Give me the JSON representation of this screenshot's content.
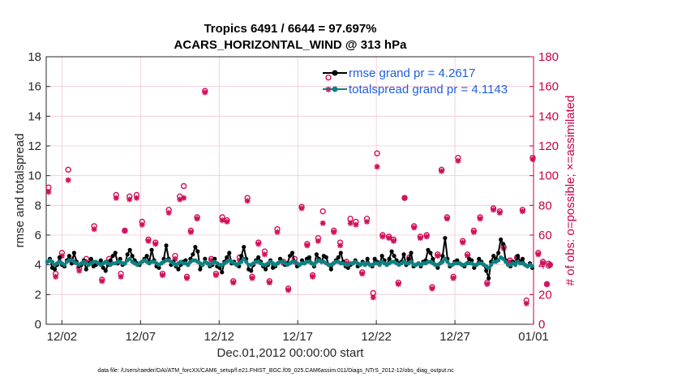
{
  "chart_data": {
    "type": "line",
    "title": "Tropics 6491 / 6644 = 97.697%",
    "subtitle": "ACARS_HORIZONTAL_WIND @ 313 hPa",
    "xlabel": "Dec.01,2012 00:00:00 start",
    "ylabel": "rmse and totalspread",
    "ylabel_right": "# of obs: o=possible; ×=assimilated",
    "footer": "data file: /Users/raeder/DAI/ATM_forcXX/CAM6_setup/f.e21.FHIST_BGC.f09_025.CAM6assim.011/Diags_NTrS_2012-12/obs_diag_output.nc",
    "xlim": [
      0,
      31
    ],
    "ylim": [
      0,
      18
    ],
    "ylim_right": [
      0,
      180
    ],
    "xticks": [
      1,
      6,
      11,
      16,
      21,
      26,
      31
    ],
    "xtick_labels": [
      "12/02",
      "12/07",
      "12/12",
      "12/17",
      "12/22",
      "12/27",
      "01/01"
    ],
    "yticks": [
      "0",
      "2",
      "4",
      "6",
      "8",
      "10",
      "12",
      "14",
      "16",
      "18"
    ],
    "yticks_right": [
      "0",
      "20",
      "40",
      "60",
      "80",
      "100",
      "120",
      "140",
      "160",
      "180"
    ],
    "grid": true,
    "legend_position": "top-right",
    "colors": {
      "rmse": "#000000",
      "spread": "#0f8080",
      "obs": "#d0105a",
      "legend_text": "#1f5fe0"
    },
    "series": [
      {
        "name": "rmse grand pr = 4.2617",
        "axis": "left",
        "values": [
          4.2,
          4.4,
          3.8,
          3.7,
          4.0,
          4.5,
          4.0,
          3.9,
          4.3,
          4.6,
          4.1,
          4.8,
          4.2,
          3.9,
          4.0,
          4.3,
          3.7,
          4.1,
          4.4,
          3.9,
          4.0,
          4.1,
          4.3,
          3.8,
          3.6,
          4.0,
          4.3,
          4.6,
          4.8,
          4.1,
          4.4,
          4.0,
          4.1,
          4.7,
          5.0,
          4.6,
          4.3,
          4.1,
          4.0,
          4.2,
          4.4,
          4.6,
          4.2,
          5.0,
          4.3,
          3.9,
          3.8,
          4.1,
          4.4,
          5.3,
          4.4,
          4.0,
          4.2,
          3.9,
          3.7,
          4.0,
          4.2,
          4.3,
          4.0,
          4.4,
          4.7,
          5.2,
          4.9,
          3.7,
          4.0,
          4.4,
          4.1,
          3.9,
          4.0,
          4.4,
          3.9,
          3.8,
          3.5,
          4.2,
          4.5,
          4.8,
          4.1,
          4.2,
          4.0,
          3.9,
          4.6,
          5.2,
          4.4,
          3.7,
          3.6,
          4.0,
          4.3,
          4.5,
          4.2,
          3.9,
          3.7,
          4.0,
          4.3,
          3.8,
          3.9,
          4.1,
          4.4,
          4.2,
          4.0,
          4.1,
          4.6,
          4.8,
          4.2,
          3.9,
          4.0,
          4.3,
          4.1,
          4.4,
          4.5,
          4.1,
          3.9,
          4.7,
          4.4,
          4.2,
          4.6,
          4.5,
          4.0,
          3.7,
          4.1,
          4.3,
          4.5,
          4.8,
          4.2,
          3.9,
          3.8,
          4.0,
          4.1,
          4.3,
          3.9,
          4.0,
          4.2,
          4.0,
          4.4,
          4.0,
          3.9,
          4.4,
          4.2,
          4.0,
          4.6,
          4.3,
          4.0,
          4.4,
          4.9,
          4.6,
          4.3,
          4.1,
          4.2,
          4.7,
          4.0,
          4.4,
          4.8,
          3.9,
          4.0,
          4.1,
          3.9,
          4.2,
          4.3,
          5.0,
          4.8,
          4.4,
          4.0,
          3.8,
          4.1,
          4.6,
          5.8,
          4.4,
          3.9,
          4.0,
          4.2,
          4.3,
          4.1,
          4.0,
          3.9,
          4.1,
          4.4,
          4.3,
          3.8,
          4.0,
          4.4,
          4.2,
          4.0,
          3.6,
          3.1,
          4.2,
          4.6,
          4.4,
          4.8,
          5.7,
          5.4,
          4.3,
          4.0,
          3.9,
          4.2,
          4.0,
          4.6,
          4.2,
          4.4,
          4.0,
          3.9,
          4.1,
          3.8
        ]
      },
      {
        "name": "totalspread grand pr = 4.1143",
        "axis": "left",
        "values": [
          4.2,
          4.3,
          4.2,
          4.0,
          4.1,
          4.2,
          4.1,
          4.0,
          4.2,
          4.3,
          4.3,
          4.2,
          4.1,
          4.0,
          4.1,
          4.2,
          4.1,
          4.0,
          4.1,
          4.2,
          4.2,
          4.1,
          4.0,
          4.1,
          4.2,
          4.1,
          4.0,
          4.1,
          4.1,
          4.2,
          4.2,
          4.1,
          4.1,
          4.3,
          4.4,
          4.2,
          4.1,
          4.0,
          4.1,
          4.2,
          4.3,
          4.2,
          4.1,
          4.2,
          4.2,
          4.1,
          4.0,
          4.1,
          4.2,
          4.3,
          4.3,
          4.2,
          4.1,
          4.0,
          4.1,
          4.2,
          4.1,
          4.1,
          4.0,
          4.2,
          4.3,
          4.3,
          4.2,
          4.1,
          4.0,
          4.2,
          4.1,
          4.0,
          4.1,
          4.2,
          4.1,
          4.0,
          4.0,
          4.1,
          4.2,
          4.3,
          4.2,
          4.1,
          4.0,
          4.1,
          4.2,
          4.4,
          4.2,
          4.0,
          4.0,
          4.1,
          4.2,
          4.2,
          4.1,
          4.0,
          4.0,
          4.1,
          4.2,
          4.1,
          4.0,
          4.1,
          4.2,
          4.2,
          4.1,
          4.0,
          4.1,
          4.2,
          4.2,
          4.1,
          4.0,
          4.1,
          4.1,
          4.2,
          4.2,
          4.1,
          4.0,
          4.2,
          4.3,
          4.2,
          4.2,
          4.1,
          4.0,
          4.0,
          4.1,
          4.2,
          4.2,
          4.1,
          4.1,
          4.0,
          4.0,
          4.1,
          4.1,
          4.2,
          4.1,
          4.0,
          4.1,
          4.0,
          4.1,
          4.0,
          4.0,
          4.1,
          4.1,
          4.0,
          4.2,
          4.1,
          4.0,
          4.1,
          4.2,
          4.2,
          4.1,
          4.0,
          4.1,
          4.2,
          4.1,
          4.1,
          4.2,
          4.0,
          4.0,
          4.1,
          4.0,
          4.1,
          4.1,
          4.2,
          4.2,
          4.1,
          4.0,
          4.0,
          4.1,
          4.2,
          4.4,
          4.2,
          4.0,
          4.0,
          4.1,
          4.1,
          4.1,
          4.0,
          4.0,
          4.1,
          4.1,
          4.1,
          4.0,
          4.0,
          4.1,
          4.1,
          4.0,
          3.9,
          3.8,
          4.0,
          4.2,
          4.2,
          4.3,
          4.5,
          4.4,
          4.2,
          4.0,
          4.0,
          4.1,
          4.0,
          4.2,
          4.1,
          4.1,
          4.0,
          3.9,
          4.0,
          3.9
        ]
      },
      {
        "name": "obs possible",
        "axis": "right",
        "marker": "circle",
        "points": [
          [
            0.15,
            92
          ],
          [
            0.6,
            34
          ],
          [
            1.0,
            48
          ],
          [
            1.4,
            104
          ],
          [
            1.75,
            44
          ],
          [
            2.1,
            38
          ],
          [
            2.55,
            44
          ],
          [
            3.05,
            66
          ],
          [
            3.55,
            30
          ],
          [
            4.0,
            44
          ],
          [
            4.45,
            87
          ],
          [
            4.75,
            34
          ],
          [
            5.0,
            63
          ],
          [
            5.3,
            86
          ],
          [
            5.75,
            87
          ],
          [
            6.1,
            69
          ],
          [
            6.5,
            57
          ],
          [
            6.95,
            55
          ],
          [
            7.4,
            34
          ],
          [
            7.8,
            77
          ],
          [
            8.2,
            46
          ],
          [
            8.5,
            86
          ],
          [
            8.75,
            93
          ],
          [
            8.95,
            32
          ],
          [
            9.2,
            63
          ],
          [
            9.6,
            72
          ],
          [
            10.1,
            157
          ],
          [
            10.5,
            44
          ],
          [
            10.8,
            34
          ],
          [
            11.2,
            72
          ],
          [
            11.5,
            70
          ],
          [
            11.9,
            29
          ],
          [
            12.3,
            45
          ],
          [
            12.8,
            85
          ],
          [
            13.1,
            32
          ],
          [
            13.5,
            55
          ],
          [
            13.9,
            49
          ],
          [
            14.2,
            29
          ],
          [
            14.7,
            64
          ],
          [
            15.1,
            42
          ],
          [
            15.4,
            24
          ],
          [
            15.8,
            44
          ],
          [
            16.25,
            79
          ],
          [
            16.6,
            54
          ],
          [
            16.95,
            33
          ],
          [
            17.3,
            58
          ],
          [
            17.6,
            76
          ],
          [
            17.95,
            166
          ],
          [
            18.3,
            63
          ],
          [
            18.7,
            55
          ],
          [
            19.1,
            42
          ],
          [
            19.35,
            71
          ],
          [
            19.7,
            69
          ],
          [
            20.1,
            35
          ],
          [
            20.4,
            71
          ],
          [
            20.8,
            21
          ],
          [
            21.05,
            115
          ],
          [
            21.4,
            60
          ],
          [
            21.8,
            59
          ],
          [
            22.1,
            57
          ],
          [
            22.4,
            28
          ],
          [
            22.8,
            85
          ],
          [
            23.1,
            45
          ],
          [
            23.4,
            66
          ],
          [
            23.8,
            59
          ],
          [
            24.2,
            60
          ],
          [
            24.55,
            25
          ],
          [
            24.9,
            47
          ],
          [
            25.15,
            104
          ],
          [
            25.5,
            72
          ],
          [
            25.9,
            32
          ],
          [
            26.2,
            112
          ],
          [
            26.5,
            56
          ],
          [
            26.8,
            47
          ],
          [
            27.2,
            63
          ],
          [
            27.6,
            72
          ],
          [
            28.05,
            28
          ],
          [
            28.45,
            78
          ],
          [
            28.85,
            76
          ],
          [
            29.1,
            52
          ],
          [
            29.5,
            43
          ],
          [
            29.95,
            45
          ],
          [
            30.3,
            77
          ],
          [
            30.55,
            16
          ],
          [
            30.95,
            112
          ],
          [
            31.3,
            48
          ],
          [
            31.6,
            42
          ],
          [
            31.85,
            27
          ],
          [
            32.05,
            40
          ]
        ]
      },
      {
        "name": "obs assimilated",
        "axis": "right",
        "marker": "asterisk",
        "points": [
          [
            0.15,
            89
          ],
          [
            0.6,
            32
          ],
          [
            1.0,
            46
          ],
          [
            1.4,
            97
          ],
          [
            1.75,
            42
          ],
          [
            2.1,
            36
          ],
          [
            2.55,
            42
          ],
          [
            3.05,
            64
          ],
          [
            3.55,
            29
          ],
          [
            4.0,
            42
          ],
          [
            4.45,
            85
          ],
          [
            4.75,
            32
          ],
          [
            5.0,
            63
          ],
          [
            5.3,
            84
          ],
          [
            5.75,
            85
          ],
          [
            6.1,
            67
          ],
          [
            6.5,
            56
          ],
          [
            6.95,
            54
          ],
          [
            7.4,
            33
          ],
          [
            7.8,
            75
          ],
          [
            8.2,
            44
          ],
          [
            8.5,
            84
          ],
          [
            8.75,
            85
          ],
          [
            8.95,
            31
          ],
          [
            9.2,
            62
          ],
          [
            9.6,
            71
          ],
          [
            10.1,
            156
          ],
          [
            10.5,
            43
          ],
          [
            10.8,
            33
          ],
          [
            11.2,
            70
          ],
          [
            11.5,
            69
          ],
          [
            11.9,
            28
          ],
          [
            12.3,
            43
          ],
          [
            12.8,
            83
          ],
          [
            13.1,
            31
          ],
          [
            13.5,
            54
          ],
          [
            13.9,
            47
          ],
          [
            14.2,
            28
          ],
          [
            14.7,
            62
          ],
          [
            15.1,
            41
          ],
          [
            15.4,
            23
          ],
          [
            15.8,
            42
          ],
          [
            16.25,
            78
          ],
          [
            16.6,
            53
          ],
          [
            16.95,
            32
          ],
          [
            17.3,
            56
          ],
          [
            17.6,
            68
          ],
          [
            17.95,
            158
          ],
          [
            18.3,
            62
          ],
          [
            18.7,
            53
          ],
          [
            19.1,
            41
          ],
          [
            19.35,
            68
          ],
          [
            19.7,
            67
          ],
          [
            20.1,
            34
          ],
          [
            20.4,
            69
          ],
          [
            20.8,
            18
          ],
          [
            21.05,
            106
          ],
          [
            21.4,
            59
          ],
          [
            21.8,
            58
          ],
          [
            22.1,
            56
          ],
          [
            22.4,
            27
          ],
          [
            22.8,
            85
          ],
          [
            23.1,
            44
          ],
          [
            23.4,
            65
          ],
          [
            23.8,
            58
          ],
          [
            24.2,
            59
          ],
          [
            24.55,
            24
          ],
          [
            24.9,
            46
          ],
          [
            25.15,
            103
          ],
          [
            25.5,
            71
          ],
          [
            25.9,
            31
          ],
          [
            26.2,
            110
          ],
          [
            26.5,
            55
          ],
          [
            26.8,
            46
          ],
          [
            27.2,
            62
          ],
          [
            27.6,
            71
          ],
          [
            28.05,
            27
          ],
          [
            28.45,
            77
          ],
          [
            28.85,
            75
          ],
          [
            29.1,
            51
          ],
          [
            29.5,
            42
          ],
          [
            29.95,
            44
          ],
          [
            30.3,
            76
          ],
          [
            30.55,
            14
          ],
          [
            30.95,
            111
          ],
          [
            31.3,
            47
          ],
          [
            31.6,
            41
          ],
          [
            31.85,
            27
          ],
          [
            32.05,
            40
          ]
        ]
      }
    ]
  }
}
